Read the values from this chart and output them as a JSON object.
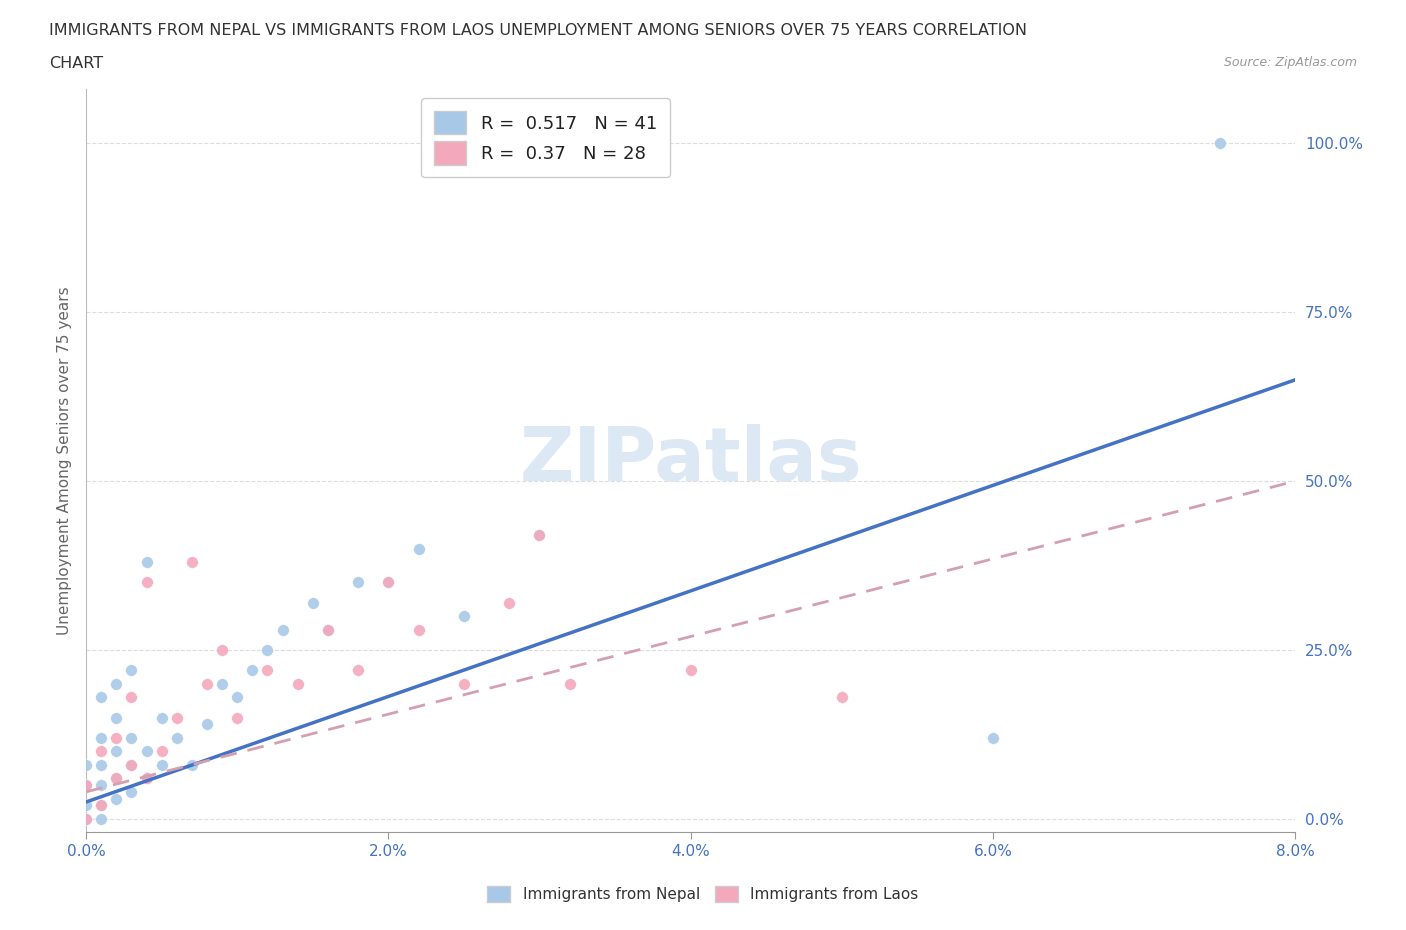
{
  "title_line1": "IMMIGRANTS FROM NEPAL VS IMMIGRANTS FROM LAOS UNEMPLOYMENT AMONG SENIORS OVER 75 YEARS CORRELATION",
  "title_line2": "CHART",
  "source_text": "Source: ZipAtlas.com",
  "ylabel": "Unemployment Among Seniors over 75 years",
  "xmin": 0.0,
  "xmax": 0.08,
  "ymin": -0.02,
  "ymax": 1.08,
  "xticks": [
    0.0,
    0.02,
    0.04,
    0.06,
    0.08
  ],
  "xtick_labels": [
    "0.0%",
    "2.0%",
    "4.0%",
    "6.0%",
    "8.0%"
  ],
  "ytick_labels": [
    "0.0%",
    "25.0%",
    "50.0%",
    "75.0%",
    "100.0%"
  ],
  "ytick_vals": [
    0.0,
    0.25,
    0.5,
    0.75,
    1.0
  ],
  "nepal_color": "#a8c8e8",
  "laos_color": "#f4a8bc",
  "nepal_line_color": "#4472c4",
  "laos_line_color": "#d4a0b0",
  "nepal_R": 0.517,
  "nepal_N": 41,
  "laos_R": 0.37,
  "laos_N": 28,
  "watermark": "ZIPatlas",
  "nepal_x": [
    0.0,
    0.0,
    0.0,
    0.0,
    0.001,
    0.001,
    0.001,
    0.001,
    0.001,
    0.001,
    0.002,
    0.002,
    0.002,
    0.002,
    0.002,
    0.003,
    0.003,
    0.003,
    0.003,
    0.004,
    0.004,
    0.004,
    0.005,
    0.005,
    0.006,
    0.007,
    0.008,
    0.009,
    0.01,
    0.011,
    0.012,
    0.013,
    0.015,
    0.016,
    0.018,
    0.02,
    0.022,
    0.025,
    0.03,
    0.06,
    0.075
  ],
  "nepal_y": [
    0.0,
    0.02,
    0.05,
    0.08,
    0.0,
    0.02,
    0.05,
    0.08,
    0.12,
    0.18,
    0.03,
    0.06,
    0.1,
    0.15,
    0.2,
    0.04,
    0.08,
    0.12,
    0.22,
    0.06,
    0.1,
    0.38,
    0.08,
    0.15,
    0.12,
    0.08,
    0.14,
    0.2,
    0.18,
    0.22,
    0.25,
    0.28,
    0.32,
    0.28,
    0.35,
    0.35,
    0.4,
    0.3,
    0.42,
    0.12,
    1.0
  ],
  "laos_x": [
    0.0,
    0.0,
    0.001,
    0.001,
    0.002,
    0.002,
    0.003,
    0.003,
    0.004,
    0.004,
    0.005,
    0.006,
    0.007,
    0.008,
    0.009,
    0.01,
    0.012,
    0.014,
    0.016,
    0.018,
    0.02,
    0.022,
    0.025,
    0.028,
    0.03,
    0.032,
    0.04,
    0.05
  ],
  "laos_y": [
    0.0,
    0.05,
    0.02,
    0.1,
    0.06,
    0.12,
    0.08,
    0.18,
    0.06,
    0.35,
    0.1,
    0.15,
    0.38,
    0.2,
    0.25,
    0.15,
    0.22,
    0.2,
    0.28,
    0.22,
    0.35,
    0.28,
    0.2,
    0.32,
    0.42,
    0.2,
    0.22,
    0.18
  ],
  "nepal_trend_x0": 0.0,
  "nepal_trend_y0": 0.025,
  "nepal_trend_x1": 0.08,
  "nepal_trend_y1": 0.65,
  "laos_trend_x0": 0.0,
  "laos_trend_y0": 0.04,
  "laos_trend_x1": 0.08,
  "laos_trend_y1": 0.5
}
